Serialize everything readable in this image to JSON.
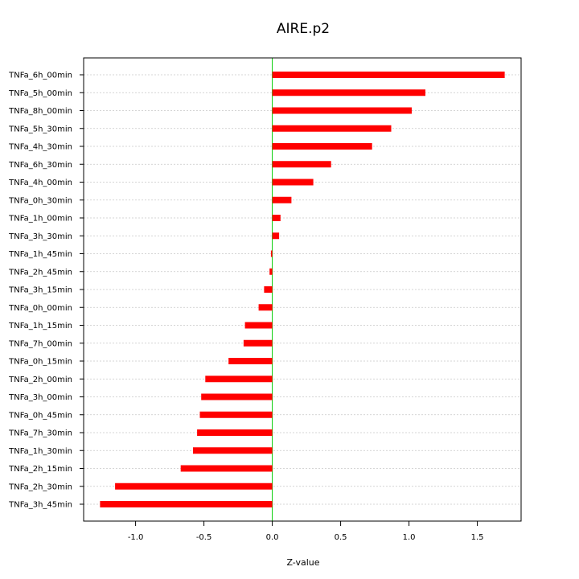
{
  "chart_data": {
    "type": "bar",
    "orientation": "horizontal",
    "title": "AIRE.p2",
    "xlabel": "Z-value",
    "ylabel": "",
    "xlim": [
      -1.38,
      1.82
    ],
    "xticks": [
      -1.0,
      -0.5,
      0.0,
      0.5,
      1.0,
      1.5
    ],
    "xtick_labels": [
      "-1.0",
      "-0.5",
      "0.0",
      "0.5",
      "1.0",
      "1.5"
    ],
    "grid": true,
    "bar_color": "#ff0000",
    "zero_line_color": "#00cc00",
    "grid_color": "#c8c8c8",
    "categories": [
      "TNFa_6h_00min",
      "TNFa_5h_00min",
      "TNFa_8h_00min",
      "TNFa_5h_30min",
      "TNFa_4h_30min",
      "TNFa_6h_30min",
      "TNFa_4h_00min",
      "TNFa_0h_30min",
      "TNFa_1h_00min",
      "TNFa_3h_30min",
      "TNFa_1h_45min",
      "TNFa_2h_45min",
      "TNFa_3h_15min",
      "TNFa_0h_00min",
      "TNFa_1h_15min",
      "TNFa_7h_00min",
      "TNFa_0h_15min",
      "TNFa_2h_00min",
      "TNFa_3h_00min",
      "TNFa_0h_45min",
      "TNFa_7h_30min",
      "TNFa_1h_30min",
      "TNFa_2h_15min",
      "TNFa_2h_30min",
      "TNFa_3h_45min"
    ],
    "values": [
      1.7,
      1.12,
      1.02,
      0.87,
      0.73,
      0.43,
      0.3,
      0.14,
      0.06,
      0.05,
      -0.01,
      -0.02,
      -0.06,
      -0.1,
      -0.2,
      -0.21,
      -0.32,
      -0.49,
      -0.52,
      -0.53,
      -0.55,
      -0.58,
      -0.67,
      -1.15,
      -1.26
    ]
  }
}
